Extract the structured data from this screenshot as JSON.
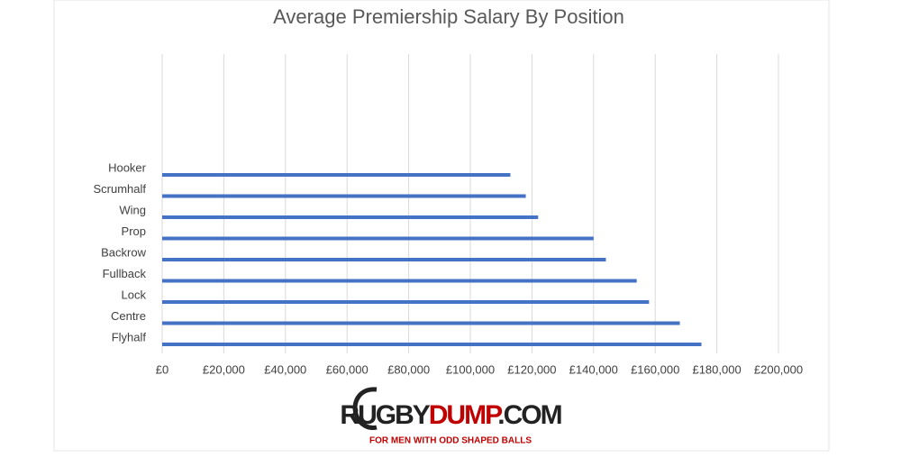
{
  "chart_data": {
    "type": "hbar",
    "title": "Average Premiership Salary By Position",
    "categories": [
      "Hooker",
      "Scrumhalf",
      "Wing",
      "Prop",
      "Backrow",
      "Fullback",
      "Lock",
      "Centre",
      "Flyhalf"
    ],
    "values": [
      113000,
      118000,
      122000,
      140000,
      144000,
      154000,
      158000,
      168000,
      175000
    ],
    "color": "#4472c4",
    "xlim": [
      0,
      200000
    ],
    "xticks": [
      {
        "value": 0,
        "label": "£0"
      },
      {
        "value": 20000,
        "label": "£20,000"
      },
      {
        "value": 40000,
        "label": "£40,000"
      },
      {
        "value": 60000,
        "label": "£60,000"
      },
      {
        "value": 80000,
        "label": "£80,000"
      },
      {
        "value": 100000,
        "label": "£100,000"
      },
      {
        "value": 120000,
        "label": "£120,000"
      },
      {
        "value": 140000,
        "label": "£140,000"
      },
      {
        "value": 160000,
        "label": "£160,000"
      },
      {
        "value": 180000,
        "label": "£180,000"
      },
      {
        "value": 200000,
        "label": "£200,000"
      }
    ],
    "grid": true
  },
  "logo": {
    "parts": [
      "RUGBY",
      "DUMP",
      ".COM"
    ],
    "tagline": "FOR MEN WITH ODD SHAPED BALLS"
  }
}
